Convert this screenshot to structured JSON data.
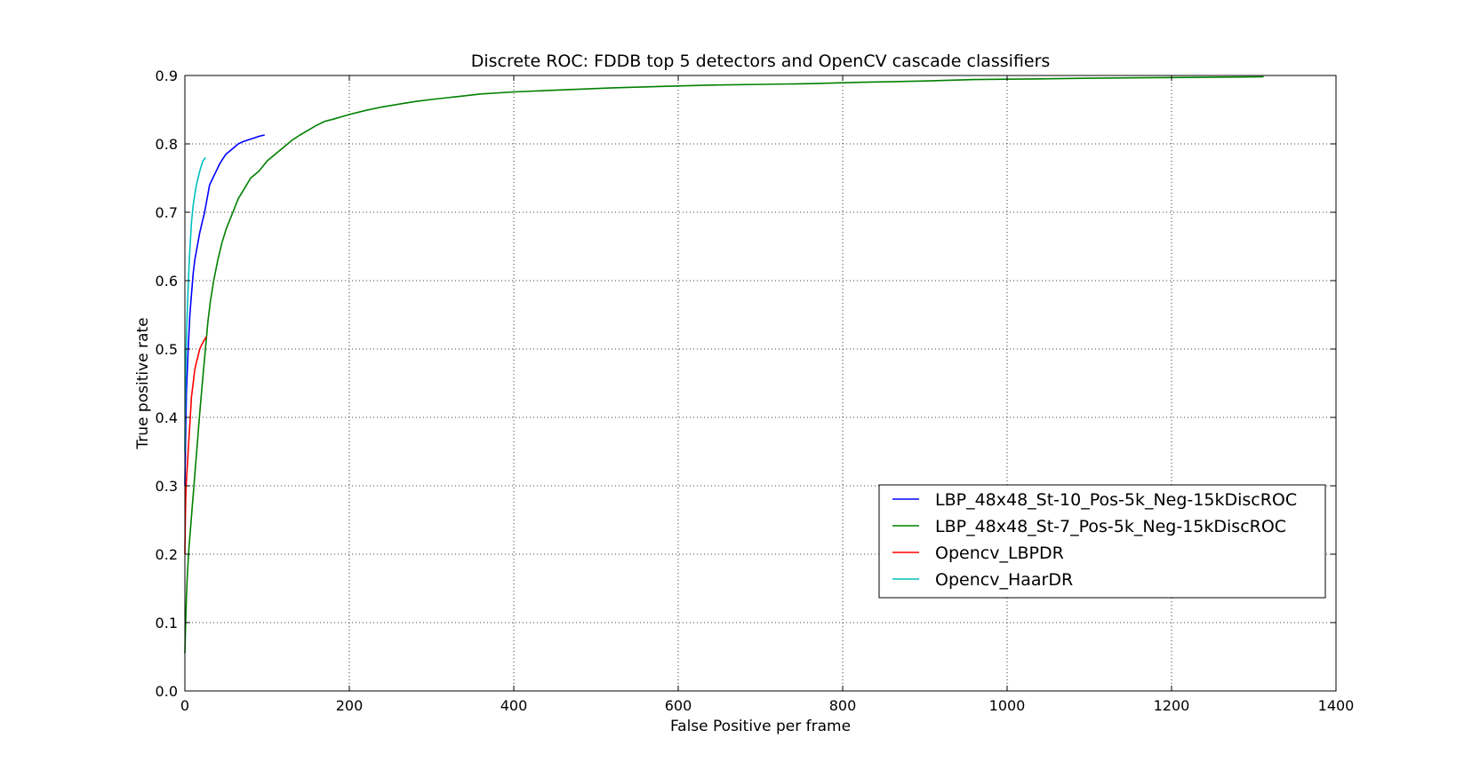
{
  "chart_data": {
    "type": "line",
    "title": "Discrete ROC: FDDB top 5 detectors and OpenCV cascade classifiers",
    "xlabel": "False Positive per frame",
    "ylabel": "True positive rate",
    "xlim": [
      0,
      1400
    ],
    "ylim": [
      0,
      0.9
    ],
    "xticks": [
      0,
      200,
      400,
      600,
      800,
      1000,
      1200,
      1400
    ],
    "xtick_labels": [
      "0",
      "200",
      "400",
      "600",
      "800",
      "1000",
      "1200",
      "1400"
    ],
    "yticks": [
      0.0,
      0.1,
      0.2,
      0.3,
      0.4,
      0.5,
      0.6,
      0.7,
      0.8,
      0.9
    ],
    "ytick_labels": [
      "0.0",
      "0.1",
      "0.2",
      "0.3",
      "0.4",
      "0.5",
      "0.6",
      "0.7",
      "0.8",
      "0.9"
    ],
    "grid": true,
    "legend_position": "lower-right",
    "series": [
      {
        "name": "LBP_48x48_St-10_Pos-5k_Neg-15kDiscROC",
        "color": "#0000ff",
        "x": [
          0,
          1,
          2,
          4,
          6,
          8,
          10,
          12,
          15,
          18,
          21,
          24,
          27,
          30,
          34,
          38,
          42,
          46,
          50,
          55,
          60,
          65,
          70,
          75,
          80,
          85,
          90,
          97
        ],
        "y": [
          0.3,
          0.38,
          0.44,
          0.5,
          0.55,
          0.58,
          0.61,
          0.63,
          0.65,
          0.67,
          0.685,
          0.7,
          0.72,
          0.74,
          0.75,
          0.76,
          0.77,
          0.778,
          0.785,
          0.79,
          0.795,
          0.8,
          0.803,
          0.805,
          0.807,
          0.809,
          0.811,
          0.813
        ]
      },
      {
        "name": "LBP_48x48_St-7_Pos-5k_Neg-15kDiscROC",
        "color": "#008000",
        "x": [
          0,
          1,
          2,
          3,
          5,
          7,
          9,
          11,
          13,
          15,
          17,
          19,
          22,
          25,
          28,
          31,
          35,
          40,
          45,
          50,
          55,
          60,
          65,
          70,
          75,
          80,
          90,
          100,
          110,
          120,
          130,
          140,
          150,
          160,
          170,
          180,
          200,
          220,
          240,
          260,
          280,
          300,
          330,
          360,
          400,
          440,
          480,
          520,
          580,
          640,
          700,
          760,
          820,
          900,
          960,
          1030,
          1100,
          1200,
          1312
        ],
        "y": [
          0.055,
          0.1,
          0.14,
          0.17,
          0.21,
          0.24,
          0.27,
          0.3,
          0.33,
          0.36,
          0.39,
          0.42,
          0.46,
          0.5,
          0.54,
          0.57,
          0.6,
          0.63,
          0.655,
          0.675,
          0.69,
          0.705,
          0.72,
          0.73,
          0.74,
          0.75,
          0.76,
          0.775,
          0.785,
          0.795,
          0.805,
          0.813,
          0.82,
          0.827,
          0.833,
          0.836,
          0.843,
          0.849,
          0.854,
          0.858,
          0.862,
          0.865,
          0.869,
          0.873,
          0.876,
          0.878,
          0.88,
          0.882,
          0.884,
          0.886,
          0.887,
          0.888,
          0.89,
          0.892,
          0.894,
          0.895,
          0.896,
          0.897,
          0.898
        ]
      },
      {
        "name": "Opencv_LBPDR",
        "color": "#ff0000",
        "x": [
          0,
          0.5,
          1,
          2,
          3,
          4,
          5,
          6,
          7,
          8,
          10,
          12,
          14,
          16,
          18,
          20,
          23,
          26
        ],
        "y": [
          0.2,
          0.25,
          0.28,
          0.31,
          0.33,
          0.35,
          0.37,
          0.39,
          0.41,
          0.43,
          0.45,
          0.47,
          0.48,
          0.49,
          0.5,
          0.505,
          0.512,
          0.518
        ]
      },
      {
        "name": "Opencv_HaarDR",
        "color": "#00bfbf",
        "x": [
          0,
          0.5,
          1,
          2,
          3,
          4,
          5,
          6,
          7,
          8,
          10,
          12,
          14,
          16,
          18,
          20,
          22,
          25
        ],
        "y": [
          0.35,
          0.42,
          0.47,
          0.52,
          0.56,
          0.59,
          0.62,
          0.645,
          0.665,
          0.685,
          0.71,
          0.725,
          0.74,
          0.75,
          0.76,
          0.768,
          0.775,
          0.78
        ]
      }
    ]
  }
}
